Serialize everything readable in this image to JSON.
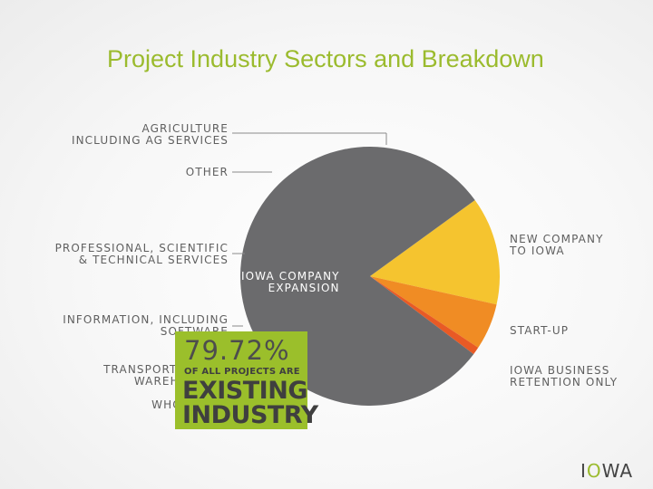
{
  "title": "Project Industry Sectors and Breakdown",
  "chart_data": {
    "type": "pie",
    "slices": [
      {
        "label": "IOWA COMPANY EXPANSION",
        "value": 79.72,
        "color": "#6b6b6d"
      },
      {
        "label": "NEW COMPANY TO IOWA",
        "value": 13.5,
        "color": "#f5c42f"
      },
      {
        "label": "START-UP",
        "value": 5.8,
        "color": "#f08c24"
      },
      {
        "label": "IOWA BUSINESS RETENTION ONLY",
        "value": 0.98,
        "color": "#e85a25"
      }
    ],
    "inner_label": [
      "IOWA COMPANY",
      "EXPANSION"
    ],
    "right_labels": [
      [
        "NEW COMPANY",
        "TO IOWA"
      ],
      [
        "START-UP"
      ],
      [
        "IOWA BUSINESS",
        "RETENTION ONLY"
      ]
    ],
    "left_labels": [
      [
        "AGRICULTURE",
        "INCLUDING AG SERVICES"
      ],
      [
        "OTHER"
      ],
      [
        "PROFESSIONAL, SCIENTIFIC",
        "& TECHNICAL SERVICES"
      ],
      [
        "INFORMATION, INCLUDING",
        "SOFTWARE"
      ],
      [
        "TRANSPORTATION &",
        "WAREHOUSING"
      ],
      [
        "WHOLESALE"
      ]
    ]
  },
  "callout": {
    "percent": "79.72%",
    "subtitle": "OF ALL PROJECTS ARE",
    "line1": "EXISTING",
    "line2": "INDUSTRY"
  },
  "logo": {
    "text_pre": "I",
    "text_o": "O",
    "text_post": "WA"
  }
}
